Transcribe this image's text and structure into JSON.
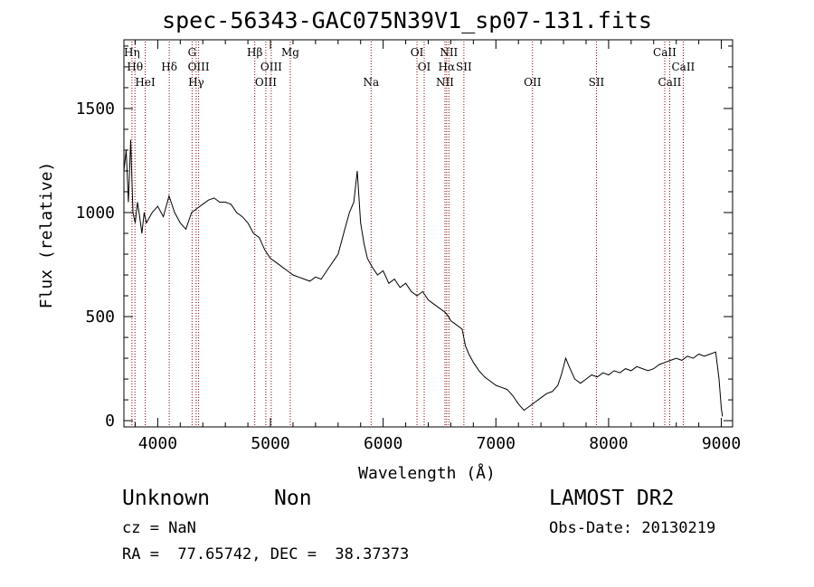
{
  "chart_data": {
    "type": "line",
    "title": "spec-56343-GAC075N39V1_sp07-131.fits",
    "xlabel": "Wavelength (Å)",
    "ylabel": "Flux (relative)",
    "xlim": [
      3700,
      9100
    ],
    "ylim": [
      -30,
      1830
    ],
    "x_ticks": [
      4000,
      5000,
      6000,
      7000,
      8000,
      9000
    ],
    "y_ticks": [
      0,
      500,
      1000,
      1500
    ],
    "grid": false,
    "line_color": "#000000",
    "marker_color": "#8b0000",
    "series": [
      {
        "x": [
          3700,
          3720,
          3740,
          3760,
          3780,
          3800,
          3820,
          3840,
          3860,
          3880,
          3900,
          3950,
          4000,
          4050,
          4100,
          4150,
          4200,
          4250,
          4300,
          4350,
          4400,
          4450,
          4500,
          4550,
          4600,
          4650,
          4700,
          4750,
          4800,
          4850,
          4900,
          4950,
          5000,
          5050,
          5100,
          5150,
          5200,
          5250,
          5300,
          5350,
          5400,
          5450,
          5500,
          5550,
          5600,
          5650,
          5700,
          5740,
          5770,
          5800,
          5830,
          5860,
          5900,
          5950,
          6000,
          6050,
          6100,
          6150,
          6200,
          6250,
          6300,
          6350,
          6400,
          6450,
          6500,
          6550,
          6580,
          6600,
          6650,
          6700,
          6730,
          6760,
          6800,
          6850,
          6900,
          6950,
          7000,
          7050,
          7100,
          7150,
          7200,
          7250,
          7300,
          7350,
          7400,
          7450,
          7500,
          7550,
          7580,
          7620,
          7650,
          7700,
          7750,
          7800,
          7850,
          7900,
          7950,
          8000,
          8050,
          8100,
          8150,
          8200,
          8250,
          8300,
          8350,
          8400,
          8450,
          8500,
          8550,
          8600,
          8650,
          8700,
          8750,
          8800,
          8850,
          8900,
          8950,
          8980,
          9000,
          9010
        ],
        "y": [
          1200,
          1300,
          1050,
          1350,
          1000,
          950,
          1050,
          980,
          900,
          1000,
          950,
          1000,
          1030,
          980,
          1080,
          1000,
          950,
          920,
          1000,
          1020,
          1040,
          1060,
          1070,
          1050,
          1050,
          1040,
          1000,
          980,
          950,
          900,
          880,
          820,
          780,
          760,
          740,
          720,
          700,
          690,
          680,
          670,
          690,
          680,
          720,
          760,
          800,
          900,
          1000,
          1050,
          1200,
          950,
          850,
          780,
          740,
          700,
          720,
          660,
          680,
          640,
          660,
          620,
          600,
          620,
          580,
          560,
          540,
          520,
          500,
          480,
          460,
          440,
          360,
          320,
          280,
          240,
          210,
          190,
          170,
          160,
          150,
          120,
          80,
          50,
          70,
          90,
          110,
          130,
          140,
          170,
          220,
          300,
          260,
          200,
          180,
          200,
          220,
          210,
          230,
          220,
          240,
          230,
          250,
          240,
          260,
          250,
          240,
          250,
          270,
          280,
          290,
          300,
          290,
          310,
          300,
          320,
          310,
          320,
          330,
          200,
          60,
          20
        ]
      }
    ],
    "lines": [
      {
        "wavelength": 3771,
        "label": "Hη",
        "row": 1
      },
      {
        "wavelength": 3798,
        "label": "Hθ",
        "row": 2
      },
      {
        "wavelength": 3889,
        "label": "HeI",
        "row": 3
      },
      {
        "wavelength": 4102,
        "label": "Hδ",
        "row": 2
      },
      {
        "wavelength": 4305,
        "label": "G",
        "row": 1
      },
      {
        "wavelength": 4341,
        "label": "Hγ",
        "row": 3
      },
      {
        "wavelength": 4363,
        "label": "OIII",
        "row": 2
      },
      {
        "wavelength": 4861,
        "label": "Hβ",
        "row": 1
      },
      {
        "wavelength": 4959,
        "label": "OIII",
        "row": 3
      },
      {
        "wavelength": 5007,
        "label": "OIII",
        "row": 2
      },
      {
        "wavelength": 5176,
        "label": "Mg",
        "row": 1
      },
      {
        "wavelength": 5893,
        "label": "Na",
        "row": 3
      },
      {
        "wavelength": 6300,
        "label": "OI",
        "row": 1
      },
      {
        "wavelength": 6364,
        "label": "OI",
        "row": 2
      },
      {
        "wavelength": 6548,
        "label": "NII",
        "row": 3
      },
      {
        "wavelength": 6563,
        "label": "Hα",
        "row": 2
      },
      {
        "wavelength": 6583,
        "label": "NII",
        "row": 1
      },
      {
        "wavelength": 6716,
        "label": "SII",
        "row": 2
      },
      {
        "wavelength": 7325,
        "label": "OII",
        "row": 3
      },
      {
        "wavelength": 7892,
        "label": "SII",
        "row": 3
      },
      {
        "wavelength": 8498,
        "label": "CaII",
        "row": 1
      },
      {
        "wavelength": 8542,
        "label": "CaII",
        "row": 3
      },
      {
        "wavelength": 8662,
        "label": "CaII",
        "row": 2
      }
    ]
  },
  "info": {
    "class": "Unknown",
    "subclass": "Non",
    "survey": "LAMOST DR2",
    "cz": "cz = NaN",
    "obs_date": "Obs-Date: 20130219",
    "coords": "RA =  77.65742, DEC =  38.37373"
  }
}
